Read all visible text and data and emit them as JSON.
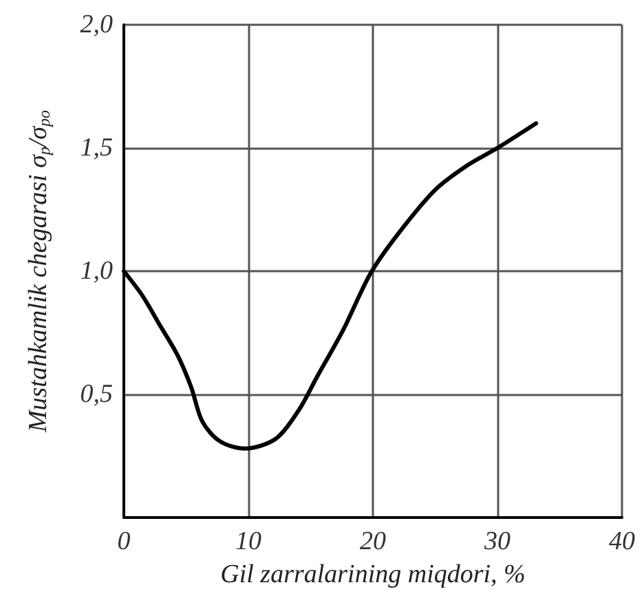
{
  "chart_data": {
    "type": "line",
    "xlabel": "Gil zarralarining miqdori, %",
    "ylabel": "Mustahkamlik chegarasi σ$_{p}$/σ$_{po}$",
    "series": [
      {
        "color": "#000000",
        "x": [
          0,
          1.5,
          2.9,
          4.3,
          5.4,
          6.3,
          7.7,
          9.7,
          12.2,
          14.1,
          15.5,
          17.6,
          19.8,
          22,
          25,
          27.6,
          30,
          33.1
        ],
        "values": [
          1.0,
          0.9,
          0.78,
          0.66,
          0.53,
          0.39,
          0.31,
          0.28,
          0.32,
          0.44,
          0.57,
          0.76,
          0.99,
          1.15,
          1.33,
          1.43,
          1.5,
          1.6
        ]
      }
    ],
    "xlim": [
      0,
      40
    ],
    "xticks": [
      0,
      10,
      20,
      30,
      40
    ],
    "ylim": [
      0,
      2.0
    ],
    "yticks": [
      {
        "value": 0.5,
        "label": "0,5"
      },
      {
        "value": 1.0,
        "label": "1,0"
      },
      {
        "value": 1.5,
        "label": "1,5"
      },
      {
        "value": 2.0,
        "label": "2,0"
      }
    ],
    "grid": true,
    "marker": "none",
    "line_style": "solid"
  }
}
